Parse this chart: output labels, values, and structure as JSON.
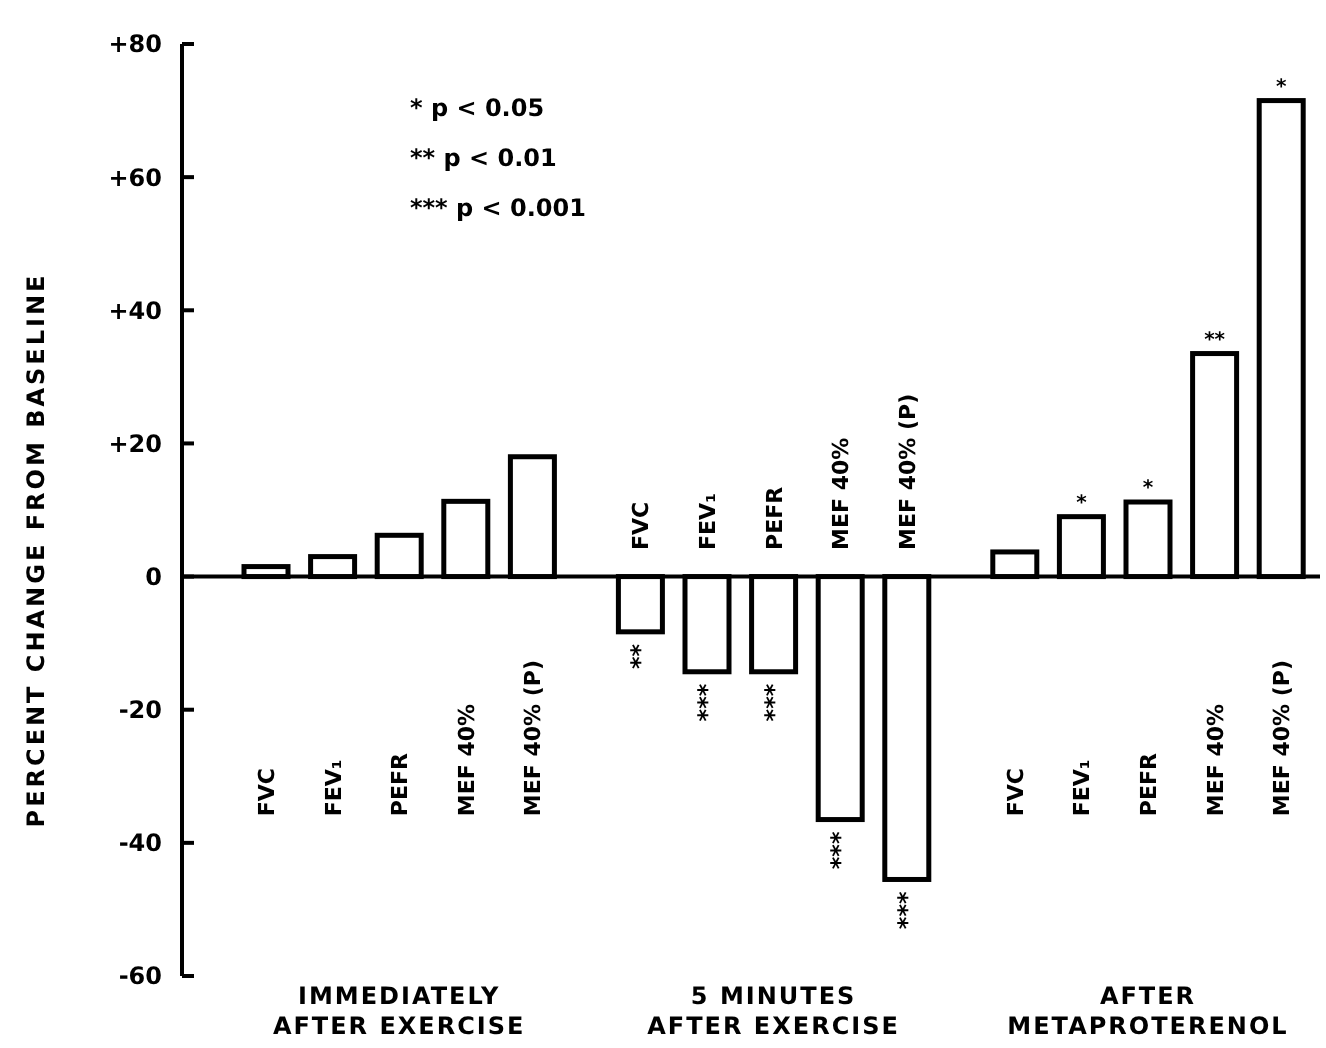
{
  "chart_data": {
    "type": "bar",
    "ylabel": "PERCENT CHANGE FROM BASELINE",
    "categories": [
      "FVC",
      "FEV₁",
      "PEFR",
      "MEF 40%",
      "MEF 40% (P)",
      "FVC",
      "FEV₁",
      "PEFR",
      "MEF 40%",
      "MEF 40% (P)",
      "FVC",
      "FEV₁",
      "PEFR",
      "MEF 40%",
      "MEF 40% (P)"
    ],
    "values": [
      1.5,
      3,
      6.2,
      11.3,
      18,
      -8.3,
      -14.3,
      -14.3,
      -36.5,
      -45.5,
      3.7,
      9,
      11.2,
      33.5,
      71.5
    ],
    "value_labels": [
      null,
      null,
      null,
      null,
      null,
      "**",
      "***",
      "***",
      "***",
      "***",
      null,
      "*",
      "*",
      "**",
      "*"
    ],
    "color": "#000000",
    "ylim": [
      -60,
      80
    ],
    "yticks": [
      {
        "value": 80,
        "label": "+80"
      },
      {
        "value": 60,
        "label": "+60"
      },
      {
        "value": 40,
        "label": "+40"
      },
      {
        "value": 20,
        "label": "+20"
      },
      0,
      -20,
      -40,
      -60
    ],
    "annotations": [
      "* p < 0.05",
      "** p < 0.01",
      "*** p < 0.001",
      "IMMEDIATELY\nAFTER EXERCISE",
      "5 MINUTES\nAFTER EXERCISE",
      "AFTER\nMETAPROTERENOL"
    ]
  }
}
